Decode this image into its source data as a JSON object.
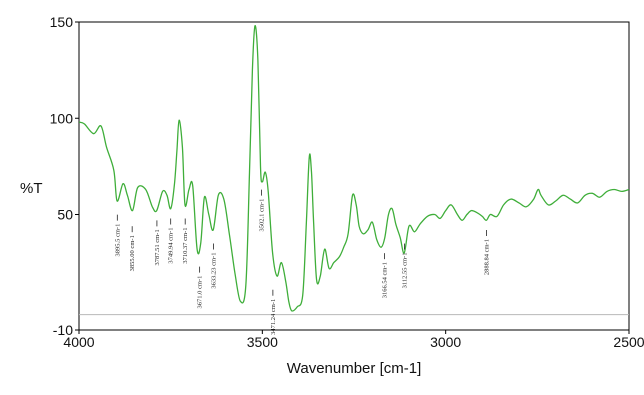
{
  "chart_data": {
    "type": "line",
    "title": "",
    "xlabel": "Wavenumber [cm-1]",
    "ylabel": "%T",
    "xlim": [
      4000,
      2500
    ],
    "ylim": [
      -10,
      150
    ],
    "x_reversed": true,
    "x_ticks": [
      "4000",
      "3500",
      "3000",
      "2500"
    ],
    "y_ticks": [
      "150",
      "100",
      "50",
      "-10"
    ],
    "grid": false,
    "baseline_y": -2,
    "series": [
      {
        "color": "#3fae3a",
        "x": [
          4000,
          3985,
          3960,
          3940,
          3925,
          3905,
          3896,
          3880,
          3868,
          3854,
          3840,
          3818,
          3800,
          3788,
          3772,
          3760,
          3750,
          3740,
          3733,
          3727,
          3718,
          3711,
          3700,
          3690,
          3678,
          3668,
          3658,
          3646,
          3634,
          3620,
          3605,
          3590,
          3575,
          3560,
          3545,
          3535,
          3527,
          3520,
          3512,
          3505,
          3500,
          3492,
          3484,
          3472,
          3460,
          3448,
          3436,
          3428,
          3420,
          3405,
          3390,
          3380,
          3372,
          3366,
          3360,
          3352,
          3342,
          3330,
          3318,
          3305,
          3290,
          3278,
          3266,
          3254,
          3244,
          3236,
          3225,
          3212,
          3200,
          3188,
          3176,
          3166,
          3156,
          3146,
          3136,
          3124,
          3113,
          3100,
          3085,
          3070,
          3050,
          3030,
          3015,
          3000,
          2985,
          2968,
          2955,
          2942,
          2930,
          2915,
          2900,
          2889,
          2878,
          2860,
          2842,
          2822,
          2800,
          2780,
          2760,
          2748,
          2740,
          2720,
          2700,
          2680,
          2660,
          2640,
          2620,
          2600,
          2580,
          2560,
          2540,
          2520,
          2500
        ],
        "y": [
          98,
          97,
          92,
          96,
          85,
          73,
          57,
          66,
          60,
          52,
          64,
          63,
          54,
          52,
          62,
          60,
          53,
          65,
          83,
          99,
          85,
          55,
          63,
          65,
          32,
          35,
          59,
          50,
          42,
          60,
          58,
          40,
          20,
          5,
          13,
          72,
          125,
          148,
          130,
          75,
          67,
          72,
          62,
          30,
          18,
          25,
          15,
          5,
          0,
          2,
          8,
          45,
          80,
          72,
          45,
          16,
          18,
          32,
          22,
          25,
          28,
          33,
          40,
          60,
          55,
          44,
          40,
          42,
          46,
          37,
          33,
          38,
          50,
          53,
          45,
          38,
          30,
          44,
          41,
          45,
          49,
          50,
          48,
          52,
          55,
          50,
          47,
          50,
          52,
          51,
          49,
          47,
          50,
          49,
          55,
          58,
          56,
          54,
          58,
          63,
          60,
          55,
          57,
          60,
          58,
          56,
          60,
          61,
          59,
          62,
          63,
          62,
          63
        ]
      }
    ],
    "peak_labels": [
      {
        "x": 3895.5,
        "y": 52,
        "text": "3895.5 cm-1"
      },
      {
        "x": 3855,
        "y": 46,
        "text": "3855.00 cm-1"
      },
      {
        "x": 3787.51,
        "y": 49,
        "text": "3787.51 cm-1"
      },
      {
        "x": 3749.94,
        "y": 50,
        "text": "3749.94 cm-1"
      },
      {
        "x": 3710.37,
        "y": 50,
        "text": "3710.37 cm-1"
      },
      {
        "x": 3671.0,
        "y": 25,
        "text": "3671.0 cm-1"
      },
      {
        "x": 3633.23,
        "y": 37,
        "text": "3633.23 cm-1"
      },
      {
        "x": 3502.1,
        "y": 65,
        "text": "3502.1 cm-1"
      },
      {
        "x": 3471.24,
        "y": 13,
        "text": "3471.24 cm-1"
      },
      {
        "x": 3166.54,
        "y": 32,
        "text": "3166.54 cm-1"
      },
      {
        "x": 3112.55,
        "y": 37,
        "text": "3112.55 cm-1"
      },
      {
        "x": 2888.84,
        "y": 44,
        "text": "2888.84 cm-1"
      }
    ]
  }
}
